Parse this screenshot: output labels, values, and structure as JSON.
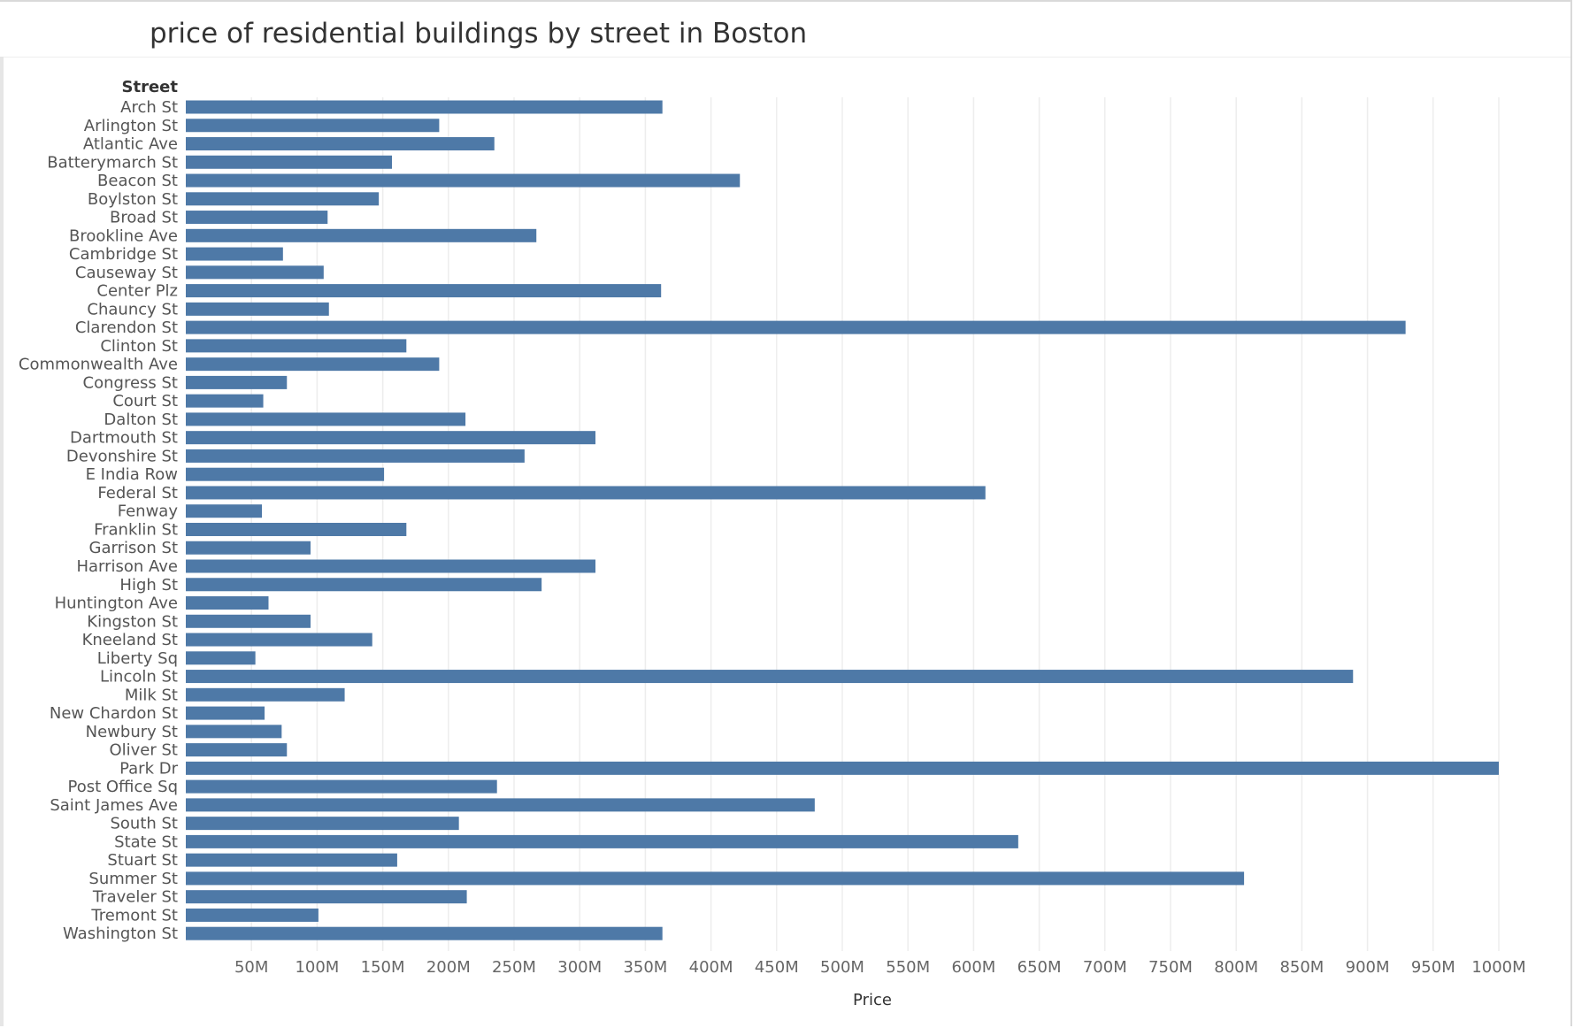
{
  "chart_data": {
    "type": "bar",
    "orientation": "horizontal",
    "title": "price of residential buildings by street in Boston",
    "xlabel": "Price",
    "ylabel": "Street",
    "xlim": [
      0,
      1000
    ],
    "x_ticks": [
      "50M",
      "100M",
      "150M",
      "200M",
      "250M",
      "300M",
      "350M",
      "400M",
      "450M",
      "500M",
      "550M",
      "600M",
      "650M",
      "700M",
      "750M",
      "800M",
      "850M",
      "900M",
      "950M",
      "1000M"
    ],
    "grid": true,
    "bar_color": "#4e79a7",
    "categories": [
      "Arch St",
      "Arlington St",
      "Atlantic Ave",
      "Batterymarch St",
      "Beacon St",
      "Boylston St",
      "Broad St",
      "Brookline Ave",
      "Cambridge St",
      "Causeway St",
      "Center Plz",
      "Chauncy St",
      "Clarendon St",
      "Clinton St",
      "Commonwealth Ave",
      "Congress St",
      "Court St",
      "Dalton St",
      "Dartmouth St",
      "Devonshire St",
      "E India Row",
      "Federal St",
      "Fenway",
      "Franklin St",
      "Garrison St",
      "Harrison Ave",
      "High St",
      "Huntington Ave",
      "Kingston St",
      "Kneeland St",
      "Liberty Sq",
      "Lincoln St",
      "Milk St",
      "New Chardon St",
      "Newbury St",
      "Oliver St",
      "Park Dr",
      "Post Office Sq",
      "Saint James Ave",
      "South St",
      "State St",
      "Stuart St",
      "Summer St",
      "Traveler St",
      "Tremont St",
      "Washington St"
    ],
    "values": [
      363,
      193,
      235,
      157,
      422,
      147,
      108,
      267,
      74,
      105,
      362,
      109,
      929,
      168,
      193,
      77,
      59,
      213,
      312,
      258,
      151,
      609,
      58,
      168,
      95,
      312,
      271,
      63,
      95,
      142,
      53,
      889,
      121,
      60,
      73,
      77,
      1000,
      237,
      479,
      208,
      634,
      161,
      806,
      214,
      101,
      363
    ]
  }
}
